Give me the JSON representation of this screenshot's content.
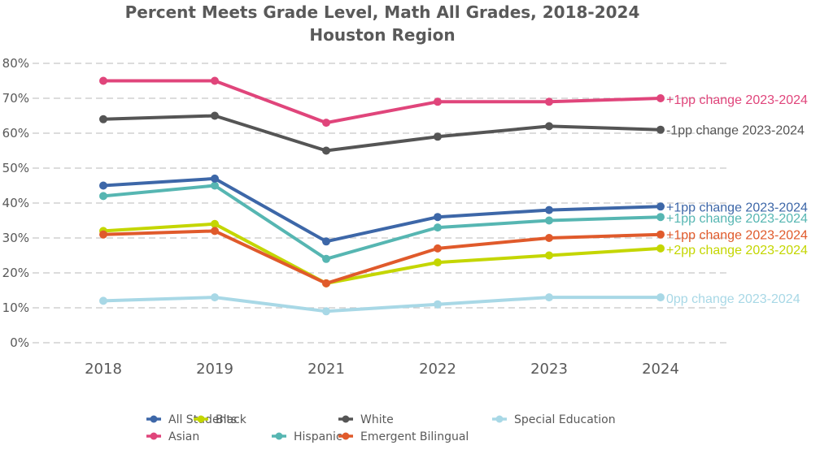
{
  "chart_data": {
    "type": "line",
    "title": "Percent Meets Grade Level, Math All Grades, 2018-2024",
    "subtitle": "Houston Region",
    "xlabel": "",
    "ylabel": "",
    "categories": [
      "2018",
      "2019",
      "2021",
      "2022",
      "2023",
      "2024"
    ],
    "ylim": [
      0,
      80
    ],
    "yticks": [
      0,
      10,
      20,
      30,
      40,
      50,
      60,
      70,
      80
    ],
    "ytick_labels": [
      "0%",
      "10%",
      "20%",
      "30%",
      "40%",
      "50%",
      "60%",
      "70%",
      "80%"
    ],
    "grid": true,
    "legend_position": "bottom",
    "series": [
      {
        "name": "All Students",
        "color": "#3d67a8",
        "values": [
          45,
          47,
          29,
          36,
          38,
          39
        ],
        "annotation": "+1pp change 2023-2024"
      },
      {
        "name": "Asian",
        "color": "#e0457b",
        "values": [
          75,
          75,
          63,
          69,
          69,
          70
        ],
        "annotation": "+1pp change 2023-2024"
      },
      {
        "name": "Black",
        "color": "#c4d600",
        "values": [
          32,
          34,
          17,
          23,
          25,
          27
        ],
        "annotation": "+2pp change 2023-2024"
      },
      {
        "name": "Hispanic",
        "color": "#56b6b2",
        "values": [
          42,
          45,
          24,
          33,
          35,
          36
        ],
        "annotation": "+1pp change 2023-2024"
      },
      {
        "name": "White",
        "color": "#555555",
        "values": [
          64,
          65,
          55,
          59,
          62,
          61
        ],
        "annotation": "-1pp change 2023-2024"
      },
      {
        "name": "Emergent Bilingual",
        "color": "#e05a2b",
        "values": [
          31,
          32,
          17,
          27,
          30,
          31
        ],
        "annotation": "+1pp change 2023-2024"
      },
      {
        "name": "Special Education",
        "color": "#a8d8e6",
        "values": [
          12,
          13,
          9,
          11,
          13,
          13
        ],
        "annotation": "0pp change 2023-2024"
      }
    ],
    "legend_order": [
      "All Students",
      "Black",
      "White",
      "Special Education",
      "Asian",
      "Hispanic",
      "Emergent Bilingual"
    ]
  }
}
